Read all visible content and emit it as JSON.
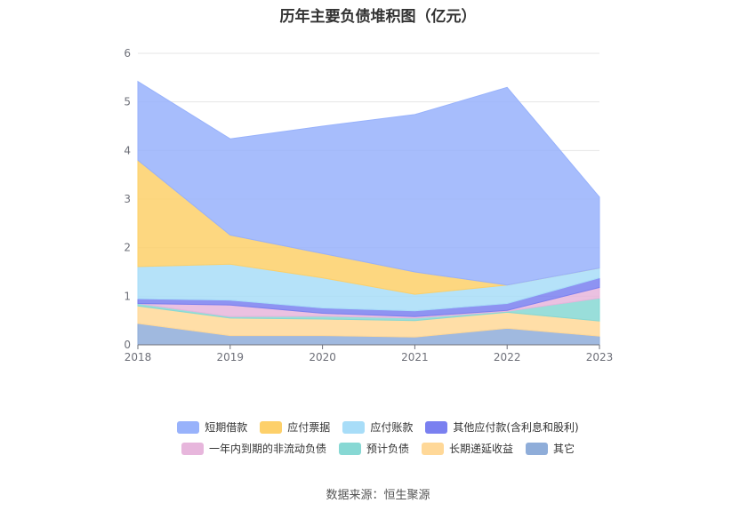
{
  "title": "历年主要负债堆积图（亿元）",
  "source": "数据来源：恒生聚源",
  "chart_data": {
    "type": "area",
    "stacked": true,
    "categories": [
      "2018",
      "2019",
      "2020",
      "2021",
      "2022",
      "2023"
    ],
    "ylim": [
      0,
      6
    ],
    "yticks": [
      0,
      1,
      2,
      3,
      4,
      5,
      6
    ],
    "grid": true,
    "legend_position": "bottom",
    "series": [
      {
        "name": "其它",
        "color": "#8fadd9",
        "values": [
          0.44,
          0.19,
          0.19,
          0.16,
          0.34,
          0.18
        ]
      },
      {
        "name": "长期递延收益",
        "color": "#ffd898",
        "values": [
          0.36,
          0.36,
          0.34,
          0.34,
          0.33,
          0.31
        ]
      },
      {
        "name": "预计负债",
        "color": "#87d8d4",
        "values": [
          0.05,
          0.03,
          0.06,
          0.05,
          0.02,
          0.47
        ]
      },
      {
        "name": "一年内到期的非流动负债",
        "color": "#e7b6dc",
        "values": [
          0.0,
          0.24,
          0.06,
          0.03,
          0.02,
          0.22
        ]
      },
      {
        "name": "其他应付款(含利息和股利)",
        "color": "#7a80f0",
        "values": [
          0.1,
          0.1,
          0.11,
          0.12,
          0.14,
          0.2
        ]
      },
      {
        "name": "应付账款",
        "color": "#a8ddf8",
        "values": [
          0.66,
          0.74,
          0.62,
          0.34,
          0.38,
          0.2
        ]
      },
      {
        "name": "应付票据",
        "color": "#fdd06a",
        "values": [
          2.19,
          0.6,
          0.5,
          0.46,
          0.0,
          0.0
        ]
      },
      {
        "name": "短期借款",
        "color": "#98b2fb",
        "values": [
          1.62,
          1.98,
          2.62,
          3.24,
          4.07,
          1.46
        ]
      }
    ],
    "legend_order": [
      [
        "短期借款",
        "应付票据",
        "应付账款",
        "其他应付款(含利息和股利)"
      ],
      [
        "一年内到期的非流动负债",
        "预计负债",
        "长期递延收益",
        "其它"
      ]
    ]
  }
}
